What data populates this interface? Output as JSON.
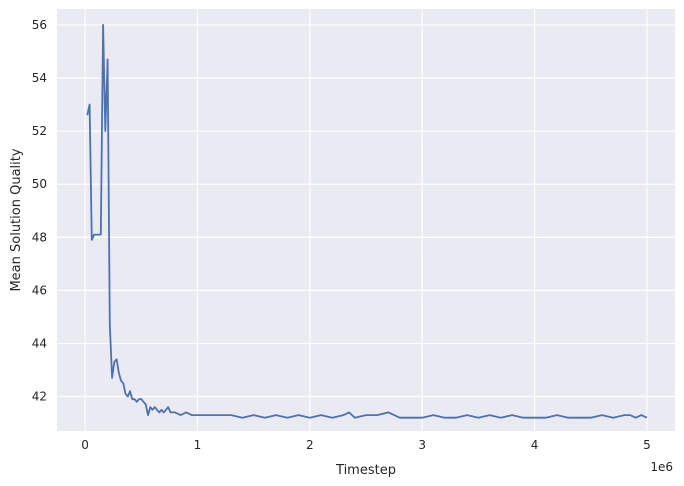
{
  "chart_data": {
    "type": "line",
    "title": "",
    "xlabel": "Timestep",
    "ylabel": "Mean Solution Quality",
    "x_offset_label": "1e6",
    "x_scale_note": "x values in units of 1e6 timesteps",
    "xlim": [
      -0.25,
      5.25
    ],
    "ylim": [
      40.7,
      56.6
    ],
    "xticks": [
      0,
      1,
      2,
      3,
      4,
      5
    ],
    "xtick_labels": [
      "0",
      "1",
      "2",
      "3",
      "4",
      "5"
    ],
    "yticks": [
      42,
      44,
      46,
      48,
      50,
      52,
      54,
      56
    ],
    "ytick_labels": [
      "42",
      "44",
      "46",
      "48",
      "50",
      "52",
      "54",
      "56"
    ],
    "grid": true,
    "background": "#EAEAF2",
    "line_color": "#4C72B0",
    "series": [
      {
        "name": "",
        "x": [
          0.02,
          0.04,
          0.06,
          0.08,
          0.1,
          0.12,
          0.14,
          0.16,
          0.18,
          0.2,
          0.22,
          0.24,
          0.26,
          0.28,
          0.3,
          0.32,
          0.34,
          0.36,
          0.38,
          0.4,
          0.42,
          0.44,
          0.46,
          0.48,
          0.5,
          0.52,
          0.54,
          0.56,
          0.58,
          0.6,
          0.62,
          0.64,
          0.66,
          0.68,
          0.7,
          0.72,
          0.74,
          0.76,
          0.78,
          0.8,
          0.85,
          0.9,
          0.95,
          1.0,
          1.05,
          1.1,
          1.15,
          1.2,
          1.3,
          1.4,
          1.5,
          1.6,
          1.7,
          1.8,
          1.9,
          2.0,
          2.1,
          2.2,
          2.3,
          2.35,
          2.4,
          2.5,
          2.6,
          2.7,
          2.8,
          2.9,
          3.0,
          3.1,
          3.2,
          3.3,
          3.4,
          3.5,
          3.6,
          3.7,
          3.8,
          3.9,
          4.0,
          4.1,
          4.2,
          4.3,
          4.4,
          4.5,
          4.6,
          4.7,
          4.8,
          4.85,
          4.9,
          4.95,
          5.0
        ],
        "values": [
          52.6,
          53.0,
          47.9,
          48.1,
          48.1,
          48.1,
          48.1,
          56.0,
          52.0,
          54.7,
          44.7,
          42.7,
          43.3,
          43.4,
          42.9,
          42.6,
          42.5,
          42.1,
          42.0,
          42.2,
          41.9,
          41.9,
          41.8,
          41.9,
          41.9,
          41.8,
          41.7,
          41.3,
          41.6,
          41.5,
          41.6,
          41.5,
          41.4,
          41.5,
          41.4,
          41.5,
          41.6,
          41.4,
          41.4,
          41.4,
          41.3,
          41.4,
          41.3,
          41.3,
          41.3,
          41.3,
          41.3,
          41.3,
          41.3,
          41.2,
          41.3,
          41.2,
          41.3,
          41.2,
          41.3,
          41.2,
          41.3,
          41.2,
          41.3,
          41.4,
          41.2,
          41.3,
          41.3,
          41.4,
          41.2,
          41.2,
          41.2,
          41.3,
          41.2,
          41.2,
          41.3,
          41.2,
          41.3,
          41.2,
          41.3,
          41.2,
          41.2,
          41.2,
          41.3,
          41.2,
          41.2,
          41.2,
          41.3,
          41.2,
          41.3,
          41.3,
          41.2,
          41.3,
          41.2
        ]
      }
    ]
  }
}
